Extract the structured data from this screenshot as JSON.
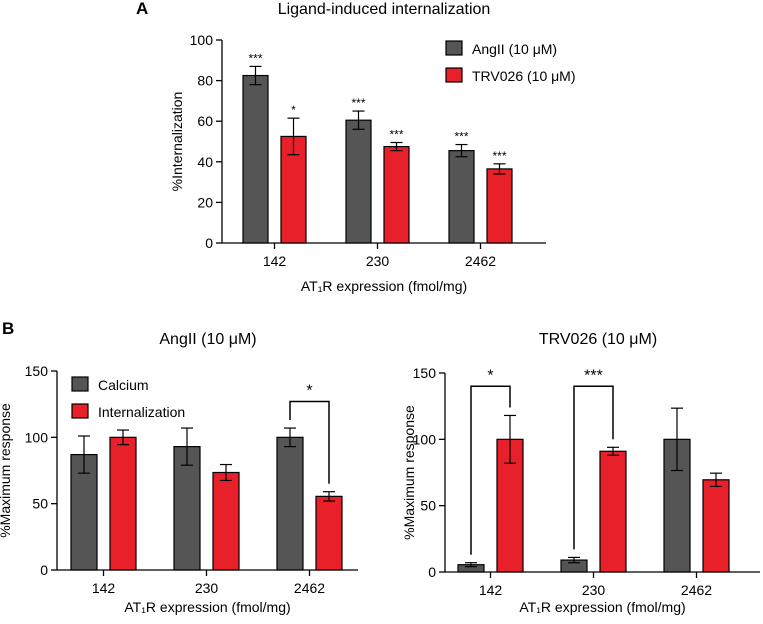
{
  "colors": {
    "grey": "#555555",
    "red": "#e8202a",
    "axis": "#000000"
  },
  "panel_labels": {
    "a": "A",
    "b": "B"
  },
  "chart_data": [
    {
      "id": "A",
      "type": "bar",
      "title": "Ligand-induced internalization",
      "xlabel": "AT₁R expression (fmol/mg)",
      "ylabel": "%Internalization",
      "ylim": [
        0,
        100
      ],
      "yticks": [
        0,
        20,
        40,
        60,
        80,
        100
      ],
      "categories": [
        "142",
        "230",
        "2462"
      ],
      "legend_position": "top-right",
      "series": [
        {
          "name": "AngII (10 μM)",
          "color": "#555555",
          "values": [
            82.5,
            60.5,
            45.5
          ],
          "errors": [
            4.5,
            4.5,
            3.0
          ],
          "sig": [
            "***",
            "***",
            "***"
          ]
        },
        {
          "name": "TRV026 (10 μM)",
          "color": "#e8202a",
          "values": [
            52.5,
            47.5,
            36.5
          ],
          "errors": [
            9.0,
            2.0,
            2.5
          ],
          "sig": [
            "*",
            "***",
            "***"
          ]
        }
      ],
      "brackets": []
    },
    {
      "id": "B1",
      "type": "bar",
      "title": "AngII (10 μM)",
      "xlabel": "AT₁R expression (fmol/mg)",
      "ylabel": "%Maximum response",
      "ylim": [
        0,
        150
      ],
      "yticks": [
        0,
        50,
        100,
        150
      ],
      "categories": [
        "142",
        "230",
        "2462"
      ],
      "legend_position": "top-left",
      "series": [
        {
          "name": "Calcium",
          "color": "#555555",
          "values": [
            87,
            93,
            100
          ],
          "errors": [
            14,
            14,
            7
          ],
          "sig": [
            "",
            "",
            ""
          ]
        },
        {
          "name": "Internalization",
          "color": "#e8202a",
          "values": [
            100,
            73.5,
            55.5
          ],
          "errors": [
            5.5,
            6.0,
            3.5
          ],
          "sig": [
            "",
            "",
            ""
          ]
        }
      ],
      "brackets": [
        {
          "category": 2,
          "label": "*",
          "level": 127
        }
      ]
    },
    {
      "id": "B2",
      "type": "bar",
      "title": "TRV026 (10 μM)",
      "xlabel": "AT₁R expression (fmol/mg)",
      "ylabel": "%Maximum response",
      "ylim": [
        0,
        150
      ],
      "yticks": [
        0,
        50,
        100,
        150
      ],
      "categories": [
        "142",
        "230",
        "2462"
      ],
      "legend_position": "none",
      "series": [
        {
          "name": "Calcium",
          "color": "#555555",
          "values": [
            5.5,
            9.0,
            100
          ],
          "errors": [
            1.5,
            2.0,
            23.5
          ],
          "sig": [
            "",
            "",
            ""
          ]
        },
        {
          "name": "Internalization",
          "color": "#e8202a",
          "values": [
            100,
            91,
            69.5
          ],
          "errors": [
            18,
            3,
            5
          ],
          "sig": [
            "",
            "",
            ""
          ]
        }
      ],
      "brackets": [
        {
          "category": 0,
          "label": "*",
          "level": 140
        },
        {
          "category": 1,
          "label": "***",
          "level": 140
        }
      ]
    }
  ]
}
